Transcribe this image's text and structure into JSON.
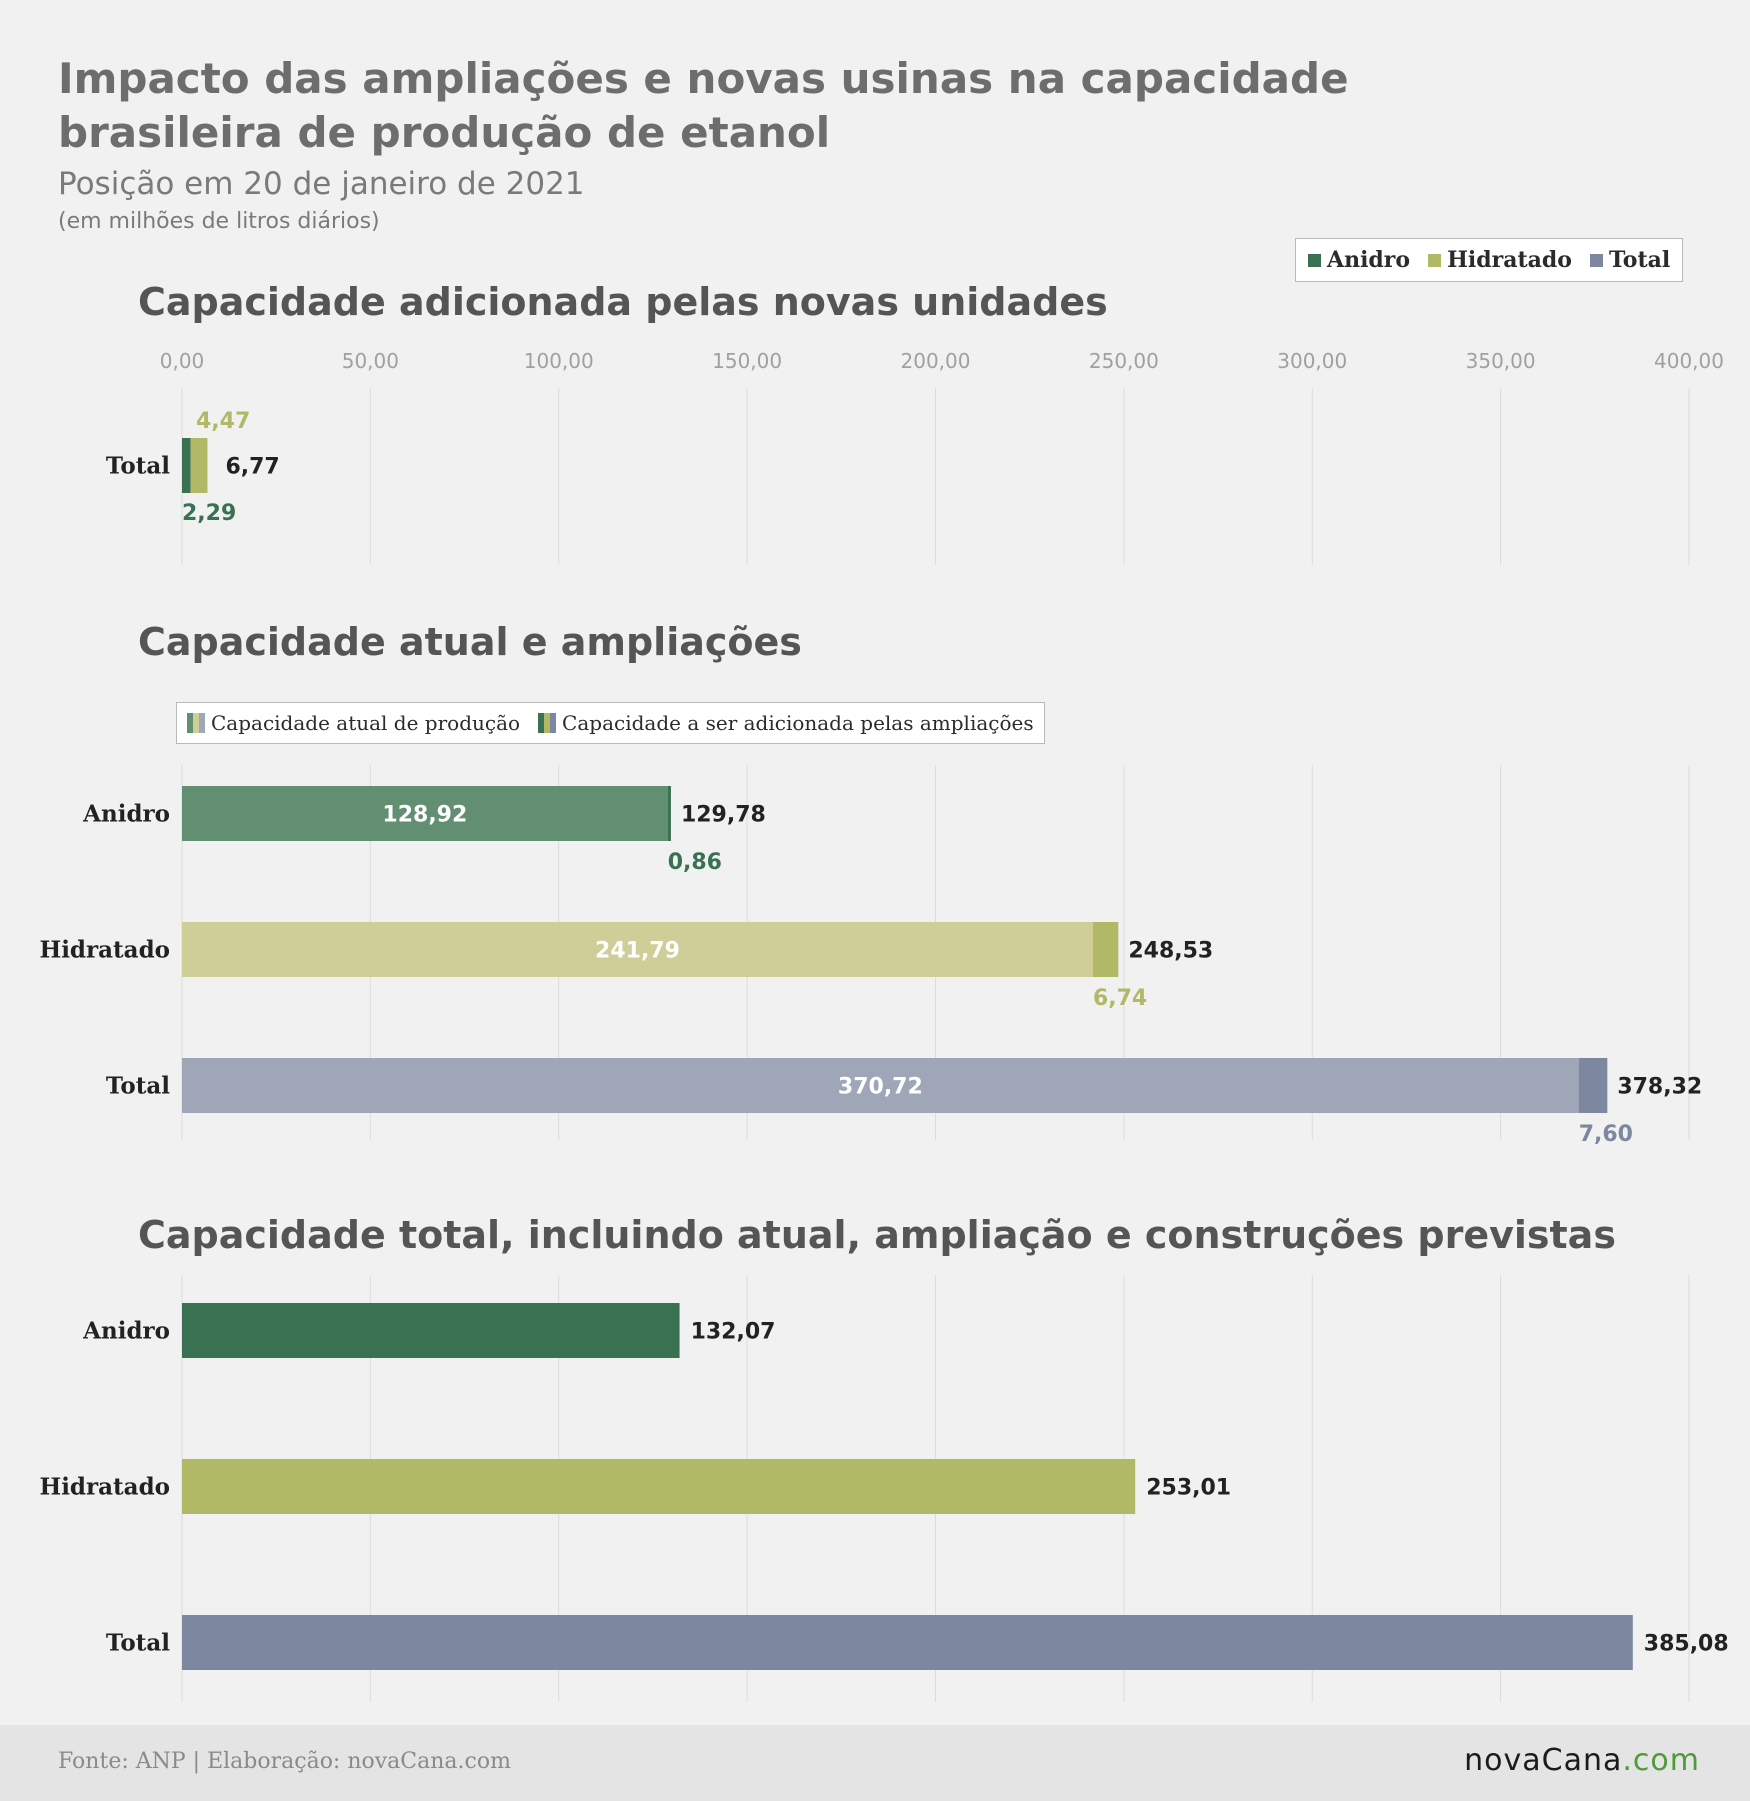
{
  "title": "Impacto das ampliações e novas usinas na capacidade brasileira de produção de etanol",
  "subtitle": "Posição em 20 de janeiro de 2021",
  "unit": "(em milhões de litros diários)",
  "colors": {
    "anidro": "#3a7152",
    "anidro_light": "#628f72",
    "hidratado": "#b2b966",
    "hidratado_light": "#cfce98",
    "total": "#7d879f",
    "total_light": "#9ea6b8",
    "grid": "#dcdcdc",
    "axis_tick": "#a0a0a0"
  },
  "legend": [
    {
      "label": "Anidro",
      "color": "#3a7152"
    },
    {
      "label": "Hidratado",
      "color": "#b2b966"
    },
    {
      "label": "Total",
      "color": "#7d879f"
    }
  ],
  "panel_titles": [
    "Capacidade adicionada pelas novas unidades",
    "Capacidade atual e ampliações",
    "Capacidade total, incluindo atual, ampliação e construções previstas"
  ],
  "legend_capacity": {
    "current": "Capacidade atual de produção",
    "added": "Capacidade a ser adicionada pelas ampliações"
  },
  "footer": {
    "source": "Fonte: ANP | Elaboração: novaCana.com",
    "logo_main": "novaCana",
    "logo_domain": ".com"
  },
  "chart_data": [
    {
      "type": "bar",
      "orientation": "horizontal",
      "title": "Capacidade adicionada pelas novas unidades",
      "xlim": [
        0,
        400
      ],
      "ticks": [
        0,
        50,
        100,
        150,
        200,
        250,
        300,
        350,
        400
      ],
      "tick_labels": [
        "0,00",
        "50,00",
        "100,00",
        "150,00",
        "200,00",
        "250,00",
        "300,00",
        "350,00",
        "400,00"
      ],
      "categories": [
        "Total"
      ],
      "series": [
        {
          "name": "Anidro",
          "values": [
            2.29
          ],
          "labels": [
            "2,29"
          ]
        },
        {
          "name": "Hidratado",
          "values": [
            4.47
          ],
          "labels": [
            "4,47"
          ]
        }
      ],
      "totals": [
        6.77
      ],
      "total_labels": [
        "6,77"
      ],
      "grid": true
    },
    {
      "type": "bar",
      "orientation": "horizontal",
      "title": "Capacidade atual e ampliações",
      "xlim": [
        0,
        400
      ],
      "categories": [
        "Anidro",
        "Hidratado",
        "Total"
      ],
      "series": [
        {
          "name": "Capacidade atual de produção",
          "values": [
            128.92,
            241.79,
            370.72
          ],
          "labels": [
            "128,92",
            "241,79",
            "370,72"
          ]
        },
        {
          "name": "Capacidade a ser adicionada pelas ampliações",
          "values": [
            0.86,
            6.74,
            7.6
          ],
          "labels": [
            "0,86",
            "6,74",
            "7,60"
          ]
        }
      ],
      "totals": [
        129.78,
        248.53,
        378.32
      ],
      "total_labels": [
        "129,78",
        "248,53",
        "378,32"
      ],
      "grid": true
    },
    {
      "type": "bar",
      "orientation": "horizontal",
      "title": "Capacidade total, incluindo atual, ampliação e construções previstas",
      "xlim": [
        0,
        400
      ],
      "categories": [
        "Anidro",
        "Hidratado",
        "Total"
      ],
      "values": [
        132.07,
        253.01,
        385.08
      ],
      "value_labels": [
        "132,07",
        "253,01",
        "385,08"
      ],
      "grid": true
    }
  ]
}
